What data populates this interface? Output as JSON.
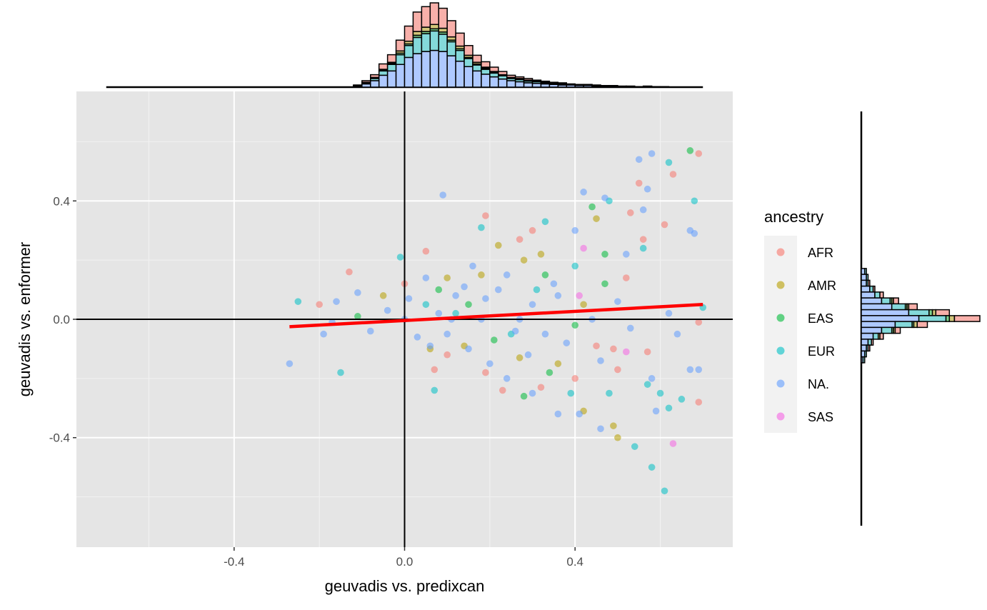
{
  "chart_data": {
    "type": "scatter",
    "title": "",
    "xlabel": "geuvadis vs. predixcan",
    "ylabel": "geuvadis vs. enformer",
    "xlim": [
      -0.77,
      0.77
    ],
    "ylim": [
      -0.77,
      0.77
    ],
    "x_ticks": [
      -0.4,
      0.0,
      0.4
    ],
    "x_tick_labels": [
      "-0.4",
      "0.0",
      "0.4"
    ],
    "y_ticks": [
      -0.4,
      0.0,
      0.4
    ],
    "y_tick_labels": [
      "-0.4",
      "0.0",
      "0.4"
    ],
    "grid": true,
    "reference_lines": {
      "x": 0,
      "y": 0
    },
    "trend_line": {
      "color": "#ff0000",
      "x": [
        -0.27,
        0.7
      ],
      "y": [
        -0.025,
        0.05
      ]
    },
    "legend": {
      "title": "ancestry",
      "placement": "right",
      "entries": [
        {
          "label": "AFR",
          "color": "#F8766D"
        },
        {
          "label": "AMR",
          "color": "#B79F00"
        },
        {
          "label": "EAS",
          "color": "#00BA38"
        },
        {
          "label": "EUR",
          "color": "#00BFC4"
        },
        {
          "label": "NA.",
          "color": "#619CFF"
        },
        {
          "label": "SAS",
          "color": "#F564E3"
        }
      ]
    },
    "series": [
      {
        "name": "AFR",
        "points": [
          [
            0.69,
            0.56
          ],
          [
            0.63,
            0.49
          ],
          [
            0.55,
            0.46
          ],
          [
            0.53,
            0.36
          ],
          [
            0.19,
            0.35
          ],
          [
            0.61,
            0.32
          ],
          [
            -0.13,
            0.16
          ],
          [
            0.05,
            0.23
          ],
          [
            0.27,
            0.27
          ],
          [
            0.56,
            0.27
          ],
          [
            0.69,
            -0.01
          ],
          [
            0.69,
            -0.28
          ],
          [
            0.57,
            -0.11
          ],
          [
            0.49,
            -0.1
          ],
          [
            0.45,
            -0.09
          ],
          [
            0.5,
            -0.17
          ],
          [
            0.07,
            -0.17
          ],
          [
            0.19,
            -0.18
          ],
          [
            0.23,
            -0.24
          ],
          [
            0.32,
            -0.23
          ],
          [
            0.4,
            -0.2
          ],
          [
            0.52,
            0.14
          ],
          [
            0.3,
            0.3
          ],
          [
            -0.2,
            0.05
          ],
          [
            0.0,
            0.12
          ],
          [
            0.1,
            -0.12
          ]
        ]
      },
      {
        "name": "AMR",
        "points": [
          [
            0.49,
            -0.36
          ],
          [
            0.5,
            -0.4
          ],
          [
            0.42,
            -0.31
          ],
          [
            0.45,
            0.34
          ],
          [
            0.28,
            0.2
          ],
          [
            0.22,
            0.25
          ],
          [
            0.18,
            0.15
          ],
          [
            0.32,
            0.22
          ],
          [
            0.1,
            0.14
          ],
          [
            0.27,
            -0.13
          ],
          [
            0.14,
            -0.09
          ],
          [
            0.42,
            0.05
          ],
          [
            -0.05,
            0.08
          ],
          [
            0.06,
            -0.1
          ],
          [
            0.36,
            -0.15
          ]
        ]
      },
      {
        "name": "EAS",
        "points": [
          [
            0.67,
            0.57
          ],
          [
            0.44,
            0.38
          ],
          [
            0.47,
            0.22
          ],
          [
            -0.11,
            0.01
          ],
          [
            0.28,
            -0.26
          ],
          [
            0.33,
            0.15
          ],
          [
            0.15,
            0.05
          ],
          [
            0.08,
            0.1
          ],
          [
            0.4,
            -0.02
          ],
          [
            0.21,
            -0.07
          ],
          [
            0.34,
            -0.18
          ],
          [
            0.47,
            0.12
          ]
        ]
      },
      {
        "name": "EUR",
        "points": [
          [
            0.7,
            0.04
          ],
          [
            0.68,
            0.4
          ],
          [
            0.62,
            0.53
          ],
          [
            0.58,
            -0.5
          ],
          [
            0.61,
            -0.58
          ],
          [
            0.54,
            -0.43
          ],
          [
            0.57,
            -0.22
          ],
          [
            0.6,
            -0.25
          ],
          [
            0.65,
            -0.27
          ],
          [
            0.48,
            0.4
          ],
          [
            0.18,
            0.31
          ],
          [
            0.33,
            0.33
          ],
          [
            -0.25,
            0.06
          ],
          [
            -0.15,
            -0.18
          ],
          [
            -0.01,
            0.21
          ],
          [
            0.07,
            -0.24
          ],
          [
            0.39,
            -0.25
          ],
          [
            0.48,
            -0.25
          ],
          [
            0.56,
            0.24
          ],
          [
            0.31,
            0.1
          ],
          [
            0.12,
            0.02
          ],
          [
            0.25,
            -0.05
          ],
          [
            0.05,
            0.05
          ],
          [
            0.4,
            0.18
          ],
          [
            0.62,
            -0.3
          ]
        ]
      },
      {
        "name": "NA.",
        "points": [
          [
            0.58,
            0.56
          ],
          [
            0.55,
            0.54
          ],
          [
            0.57,
            0.44
          ],
          [
            0.47,
            0.41
          ],
          [
            0.42,
            0.43
          ],
          [
            0.56,
            0.37
          ],
          [
            0.67,
            0.3
          ],
          [
            0.68,
            0.29
          ],
          [
            0.09,
            0.42
          ],
          [
            -0.27,
            -0.15
          ],
          [
            -0.19,
            -0.05
          ],
          [
            -0.16,
            0.06
          ],
          [
            -0.17,
            -0.01
          ],
          [
            0.59,
            -0.31
          ],
          [
            0.58,
            -0.2
          ],
          [
            0.67,
            -0.17
          ],
          [
            0.69,
            -0.17
          ],
          [
            0.46,
            -0.37
          ],
          [
            0.41,
            -0.32
          ],
          [
            0.36,
            -0.32
          ],
          [
            0.3,
            -0.25
          ],
          [
            0.24,
            -0.2
          ],
          [
            0.15,
            -0.1
          ],
          [
            0.03,
            -0.06
          ],
          [
            0.08,
            0.02
          ],
          [
            0.12,
            0.08
          ],
          [
            0.18,
            0.0
          ],
          [
            0.22,
            0.1
          ],
          [
            0.26,
            -0.04
          ],
          [
            0.3,
            0.05
          ],
          [
            0.35,
            0.12
          ],
          [
            0.38,
            -0.08
          ],
          [
            0.44,
            0.0
          ],
          [
            0.5,
            0.06
          ],
          [
            0.53,
            -0.03
          ],
          [
            0.0,
            0.0
          ],
          [
            -0.04,
            0.03
          ],
          [
            -0.08,
            -0.04
          ],
          [
            0.05,
            0.14
          ],
          [
            0.16,
            0.18
          ],
          [
            0.2,
            -0.15
          ],
          [
            0.1,
            -0.05
          ],
          [
            0.27,
            0.0
          ],
          [
            0.14,
            0.11
          ],
          [
            0.33,
            -0.05
          ],
          [
            0.4,
            0.3
          ],
          [
            0.52,
            0.22
          ],
          [
            0.62,
            0.02
          ],
          [
            0.64,
            -0.05
          ],
          [
            -0.11,
            0.09
          ],
          [
            0.06,
            -0.09
          ],
          [
            0.24,
            0.15
          ],
          [
            0.36,
            0.08
          ],
          [
            0.46,
            -0.14
          ],
          [
            0.11,
            0.0
          ],
          [
            0.19,
            0.07
          ],
          [
            0.01,
            0.07
          ],
          [
            0.29,
            -0.12
          ]
        ]
      },
      {
        "name": "SAS",
        "points": [
          [
            0.63,
            -0.42
          ],
          [
            0.52,
            -0.11
          ],
          [
            0.42,
            0.24
          ],
          [
            0.41,
            0.08
          ]
        ]
      }
    ],
    "top_histogram": {
      "type": "histogram",
      "bin_width": 0.02,
      "bin_start": -0.7,
      "stack_order": [
        "NA.",
        "EUR",
        "EAS",
        "AMR",
        "AFR"
      ],
      "bins": [
        {
          "x": -0.12,
          "counts": [
            2,
            1,
            0,
            0,
            1
          ]
        },
        {
          "x": -0.1,
          "counts": [
            6,
            2,
            0,
            1,
            3
          ]
        },
        {
          "x": -0.08,
          "counts": [
            12,
            4,
            1,
            1,
            5
          ]
        },
        {
          "x": -0.06,
          "counts": [
            22,
            8,
            1,
            2,
            10
          ]
        },
        {
          "x": -0.04,
          "counts": [
            30,
            12,
            2,
            2,
            14
          ]
        },
        {
          "x": -0.02,
          "counts": [
            42,
            18,
            3,
            4,
            20
          ]
        },
        {
          "x": 0.0,
          "counts": [
            55,
            22,
            3,
            5,
            28
          ]
        },
        {
          "x": 0.02,
          "counts": [
            62,
            30,
            4,
            7,
            36
          ]
        },
        {
          "x": 0.04,
          "counts": [
            66,
            33,
            4,
            8,
            38
          ]
        },
        {
          "x": 0.06,
          "counts": [
            68,
            36,
            4,
            8,
            40
          ]
        },
        {
          "x": 0.08,
          "counts": [
            66,
            32,
            4,
            7,
            37
          ]
        },
        {
          "x": 0.1,
          "counts": [
            58,
            26,
            3,
            6,
            30
          ]
        },
        {
          "x": 0.12,
          "counts": [
            48,
            20,
            3,
            5,
            24
          ]
        },
        {
          "x": 0.14,
          "counts": [
            38,
            15,
            2,
            4,
            18
          ]
        },
        {
          "x": 0.16,
          "counts": [
            30,
            11,
            2,
            3,
            13
          ]
        },
        {
          "x": 0.18,
          "counts": [
            24,
            9,
            2,
            2,
            10
          ]
        },
        {
          "x": 0.2,
          "counts": [
            19,
            7,
            1,
            2,
            8
          ]
        },
        {
          "x": 0.22,
          "counts": [
            15,
            6,
            1,
            1,
            6
          ]
        },
        {
          "x": 0.24,
          "counts": [
            12,
            4,
            1,
            1,
            4
          ]
        },
        {
          "x": 0.26,
          "counts": [
            10,
            4,
            1,
            1,
            3
          ]
        },
        {
          "x": 0.28,
          "counts": [
            8,
            3,
            1,
            1,
            3
          ]
        },
        {
          "x": 0.3,
          "counts": [
            7,
            3,
            0,
            1,
            2
          ]
        },
        {
          "x": 0.32,
          "counts": [
            6,
            2,
            0,
            1,
            2
          ]
        },
        {
          "x": 0.34,
          "counts": [
            5,
            2,
            0,
            0,
            2
          ]
        },
        {
          "x": 0.36,
          "counts": [
            4,
            2,
            0,
            0,
            2
          ]
        },
        {
          "x": 0.38,
          "counts": [
            4,
            1,
            0,
            0,
            1
          ]
        },
        {
          "x": 0.4,
          "counts": [
            3,
            1,
            0,
            0,
            1
          ]
        },
        {
          "x": 0.42,
          "counts": [
            3,
            1,
            0,
            0,
            1
          ]
        },
        {
          "x": 0.44,
          "counts": [
            2,
            1,
            0,
            0,
            1
          ]
        },
        {
          "x": 0.46,
          "counts": [
            2,
            1,
            0,
            0,
            0
          ]
        },
        {
          "x": 0.48,
          "counts": [
            2,
            1,
            0,
            0,
            0
          ]
        },
        {
          "x": 0.5,
          "counts": [
            1,
            1,
            0,
            0,
            0
          ]
        },
        {
          "x": 0.52,
          "counts": [
            1,
            0,
            0,
            0,
            1
          ]
        },
        {
          "x": 0.54,
          "counts": [
            1,
            0,
            0,
            0,
            0
          ]
        },
        {
          "x": 0.56,
          "counts": [
            1,
            1,
            0,
            0,
            0
          ]
        },
        {
          "x": 0.58,
          "counts": [
            1,
            0,
            0,
            0,
            0
          ]
        },
        {
          "x": 0.6,
          "counts": [
            1,
            0,
            0,
            0,
            0
          ]
        }
      ]
    },
    "right_histogram": {
      "type": "histogram",
      "bin_width": 0.02,
      "stack_order": [
        "NA.",
        "EUR",
        "EAS",
        "AMR",
        "AFR"
      ],
      "bins": [
        {
          "y": 0.16,
          "counts": [
            2,
            1,
            0,
            0,
            0
          ]
        },
        {
          "y": 0.14,
          "counts": [
            3,
            1,
            0,
            0,
            0
          ]
        },
        {
          "y": 0.12,
          "counts": [
            3,
            1,
            0,
            0,
            1
          ]
        },
        {
          "y": 0.1,
          "counts": [
            5,
            2,
            0,
            0,
            1
          ]
        },
        {
          "y": 0.08,
          "counts": [
            8,
            3,
            0,
            0,
            2
          ]
        },
        {
          "y": 0.06,
          "counts": [
            12,
            5,
            1,
            1,
            3
          ]
        },
        {
          "y": 0.04,
          "counts": [
            18,
            8,
            1,
            1,
            5
          ]
        },
        {
          "y": 0.02,
          "counts": [
            28,
            12,
            2,
            2,
            8
          ]
        },
        {
          "y": 0.0,
          "counts": [
            34,
            16,
            2,
            3,
            15
          ]
        },
        {
          "y": -0.02,
          "counts": [
            20,
            10,
            1,
            2,
            6
          ]
        },
        {
          "y": -0.04,
          "counts": [
            12,
            6,
            1,
            1,
            3
          ]
        },
        {
          "y": -0.06,
          "counts": [
            7,
            3,
            0,
            1,
            2
          ]
        },
        {
          "y": -0.08,
          "counts": [
            4,
            2,
            0,
            0,
            1
          ]
        },
        {
          "y": -0.1,
          "counts": [
            3,
            1,
            0,
            0,
            1
          ]
        },
        {
          "y": -0.12,
          "counts": [
            2,
            1,
            0,
            0,
            0
          ]
        },
        {
          "y": -0.14,
          "counts": [
            1,
            1,
            0,
            0,
            0
          ]
        }
      ]
    }
  }
}
